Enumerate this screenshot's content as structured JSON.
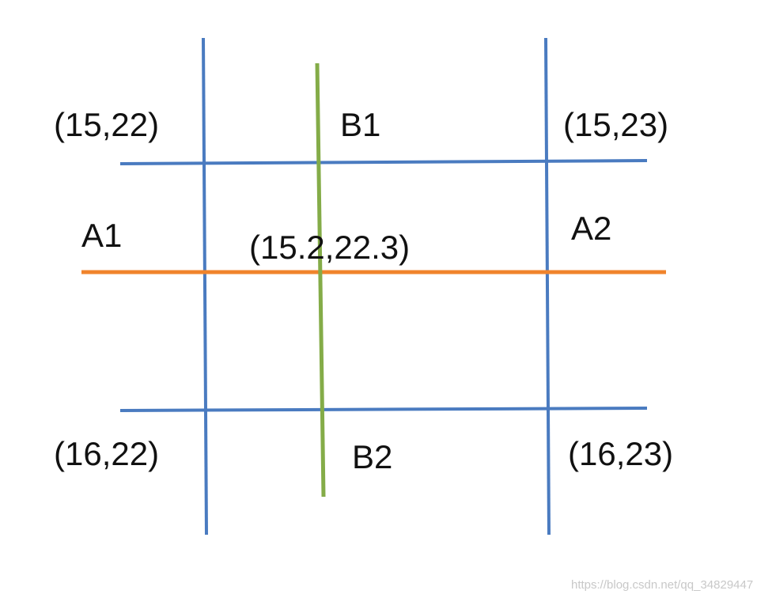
{
  "labels": {
    "top_left": "(15,22)",
    "b1": "B1",
    "top_right": "(15,23)",
    "a1": "A1",
    "center": "(15.2,22.3)",
    "a2": "A2",
    "bottom_left": "(16,22)",
    "b2": "B2",
    "bottom_right": "(16,23)"
  },
  "watermark": "https://blog.csdn.net/qq_34829447"
}
